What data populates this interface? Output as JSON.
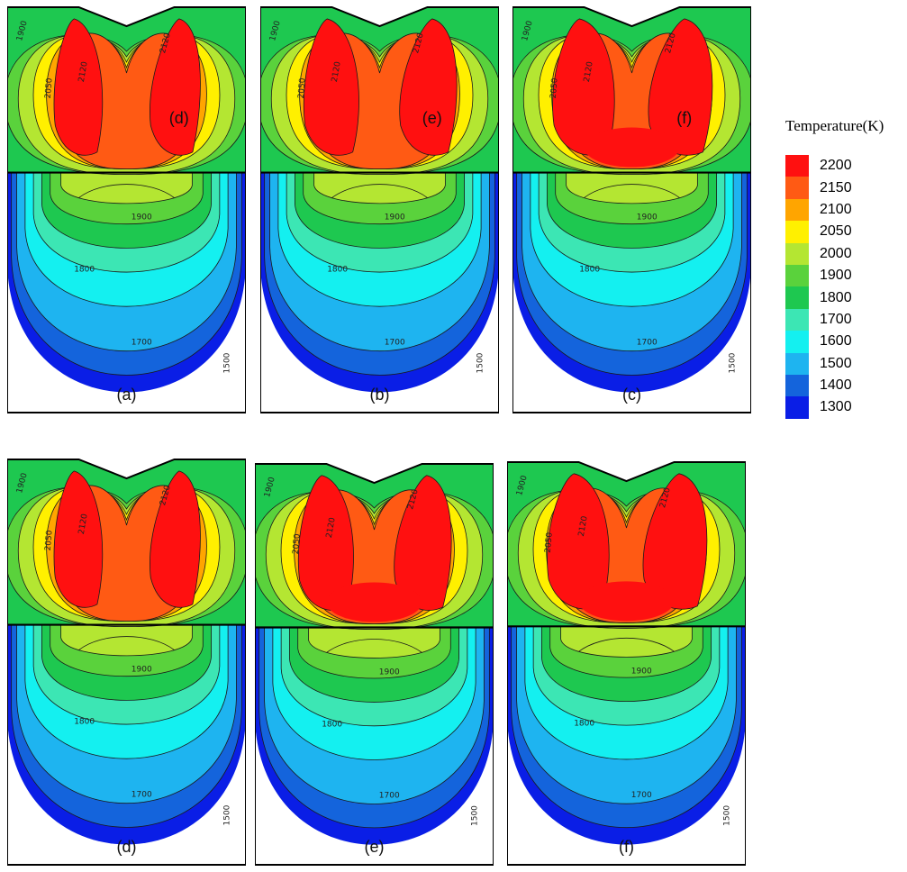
{
  "legend": {
    "title": "Temperature(K)",
    "items": [
      {
        "value": "2200",
        "color": "#ff1010"
      },
      {
        "value": "2150",
        "color": "#ff5a14"
      },
      {
        "value": "2100",
        "color": "#ffa500"
      },
      {
        "value": "2050",
        "color": "#fff000"
      },
      {
        "value": "2000",
        "color": "#b4e632"
      },
      {
        "value": "1900",
        "color": "#5ad23c"
      },
      {
        "value": "1800",
        "color": "#1ec850"
      },
      {
        "value": "1700",
        "color": "#3ce6b4"
      },
      {
        "value": "1600",
        "color": "#14f0f0"
      },
      {
        "value": "1500",
        "color": "#1eb4f0"
      },
      {
        "value": "1400",
        "color": "#1464dc"
      },
      {
        "value": "1300",
        "color": "#0a1ee6"
      }
    ]
  },
  "panels": [
    {
      "label": "(a)",
      "inner_label": "(d)"
    },
    {
      "label": "(b)",
      "inner_label": "(e)"
    },
    {
      "label": "(c)",
      "inner_label": "(f)"
    },
    {
      "label": "(d)",
      "inner_label": ""
    },
    {
      "label": "(e)",
      "inner_label": ""
    },
    {
      "label": "(f)",
      "inner_label": ""
    }
  ],
  "contour_labels": {
    "hot": "2120",
    "upper_mid": "2050",
    "upper_low": "1900",
    "lower_top": "1900",
    "lower_mid": "1800",
    "lower_low": "1700",
    "edge": "1500"
  },
  "colors": {
    "border": "#000000",
    "isoline": "#1a1a1a"
  }
}
